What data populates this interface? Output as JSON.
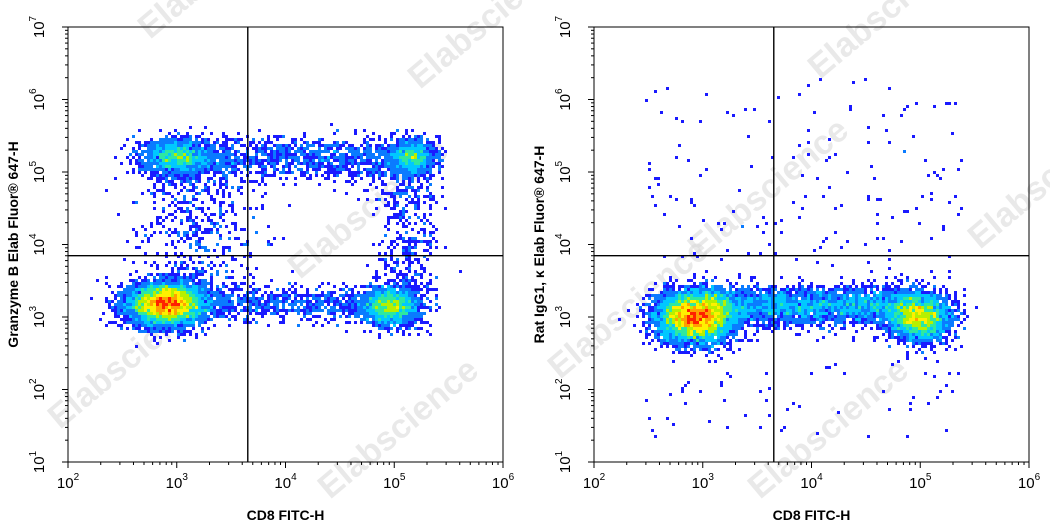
{
  "chart_data": [
    {
      "type": "scatter",
      "subtype": "flow-cytometry-density-dot-plot",
      "xlabel": "CD8 FITC-H",
      "ylabel": "Granzyme B Elab Fluor® 647-H",
      "xscale": "log",
      "yscale": "log",
      "xlim": [
        100,
        1000000
      ],
      "ylim": [
        10,
        10000000
      ],
      "x_ticks": [
        "10^2",
        "10^3",
        "10^4",
        "10^5",
        "10^6"
      ],
      "y_ticks": [
        "10^1",
        "10^2",
        "10^3",
        "10^4",
        "10^5",
        "10^6",
        "10^7"
      ],
      "quadrant_gate": {
        "x": 4500,
        "y": 7000
      },
      "populations": [
        {
          "cx": 800,
          "cy": 1500,
          "sx": 0.17,
          "sy": 0.14,
          "weight": 0.45
        },
        {
          "cx": 95000,
          "cy": 1400,
          "sx": 0.13,
          "sy": 0.13,
          "weight": 0.14
        },
        {
          "cx": 1000,
          "cy": 160000,
          "sx": 0.16,
          "sy": 0.12,
          "weight": 0.1
        },
        {
          "cx": 150000,
          "cy": 160000,
          "sx": 0.1,
          "sy": 0.12,
          "weight": 0.07
        },
        {
          "band_x": [
            700,
            150000
          ],
          "cy": 160000,
          "sy": 0.14,
          "weight": 0.1
        },
        {
          "band_x": [
            1000,
            100000
          ],
          "cy": 1500,
          "sy": 0.12,
          "weight": 0.06
        },
        {
          "band_y": [
            1500,
            160000
          ],
          "cx": 1500,
          "sx": 0.3,
          "weight": 0.05
        },
        {
          "band_y": [
            1500,
            160000
          ],
          "cx": 130000,
          "sx": 0.15,
          "weight": 0.03
        }
      ]
    },
    {
      "type": "scatter",
      "subtype": "flow-cytometry-density-dot-plot",
      "xlabel": "CD8 FITC-H",
      "ylabel": "Rat IgG1, κ Elab Fluor® 647-H",
      "xscale": "log",
      "yscale": "log",
      "xlim": [
        100,
        1000000
      ],
      "ylim": [
        10,
        10000000
      ],
      "x_ticks": [
        "10^2",
        "10^3",
        "10^4",
        "10^5",
        "10^6"
      ],
      "y_ticks": [
        "10^1",
        "10^2",
        "10^3",
        "10^4",
        "10^5",
        "10^6",
        "10^7"
      ],
      "quadrant_gate": {
        "x": 4500,
        "y": 7000
      },
      "populations": [
        {
          "cx": 850,
          "cy": 1000,
          "sx": 0.17,
          "sy": 0.17,
          "weight": 0.46
        },
        {
          "cx": 100000,
          "cy": 1000,
          "sx": 0.14,
          "sy": 0.16,
          "weight": 0.2
        },
        {
          "band_x": [
            1000,
            100000
          ],
          "cy": 1400,
          "sy": 0.13,
          "weight": 0.24
        },
        {
          "sparse": true,
          "x_range": [
            300,
            250000
          ],
          "y_range": [
            20,
            2000000
          ],
          "weight": 0.02
        }
      ]
    }
  ],
  "watermark": "Elabscience",
  "colors": {
    "density_scale": [
      "#1a1aff",
      "#0a7bff",
      "#00c8ff",
      "#2ee8a0",
      "#b6f000",
      "#fff000",
      "#ffa000",
      "#ff2000"
    ],
    "axis": "#000000",
    "gate_line": "#000000",
    "watermark": "#d8d8d8"
  }
}
